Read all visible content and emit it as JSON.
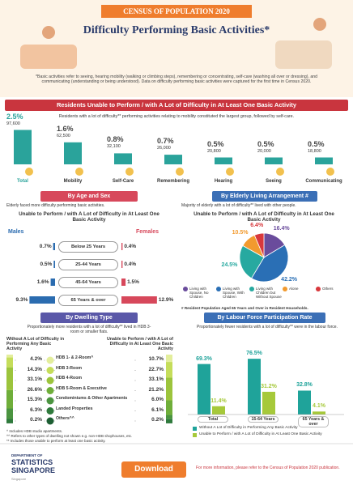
{
  "header": {
    "banner": "CENSUS OF POPULATION 2020",
    "title": "Difficulty Performing Basic Activities*",
    "note": "*Basic activities refer to seeing, hearing mobility (walking or climbing steps), remembering or concentrating, self-care (washing all over or dressing), and communicating (understanding or being understood). Data on difficulty performing basic activities were captured for the first time in Census 2020."
  },
  "activities": {
    "title": "Residents Unable to Perform / with A Lot of Difficulty in At Least One Basic Activity",
    "subtitle": "Residents with a lot of difficulty** performing activities relating to mobility constituted the largest group, followed by self-care.",
    "color": "#2aa39b",
    "items": [
      {
        "name": "Total",
        "value": 2.5,
        "label": "2.5%",
        "count": "97,600"
      },
      {
        "name": "Mobility",
        "value": 1.6,
        "label": "1.6%",
        "count": "62,500"
      },
      {
        "name": "Self-Care",
        "value": 0.8,
        "label": "0.8%",
        "count": "32,100"
      },
      {
        "name": "Remembering",
        "value": 0.7,
        "label": "0.7%",
        "count": "26,000"
      },
      {
        "name": "Hearing",
        "value": 0.5,
        "label": "0.5%",
        "count": "20,800"
      },
      {
        "name": "Seeing",
        "value": 0.5,
        "label": "0.5%",
        "count": "20,000"
      },
      {
        "name": "Communicating",
        "value": 0.5,
        "label": "0.5%",
        "count": "18,800"
      }
    ]
  },
  "age_sex": {
    "title": "By Age and Sex",
    "subtitle": "Elderly faced more difficulty performing basic activities.",
    "heading": "Unable to Perform / with A Lot of Difficulty in At Least One Basic Activity",
    "males": "Males",
    "females": "Females",
    "male_color": "#2b6cb0",
    "female_color": "#d7485b",
    "rows": [
      {
        "group": "Below 25 Years",
        "male": {
          "value": 0.7,
          "label": "0.7%"
        },
        "female": {
          "value": 0.4,
          "label": "0.4%"
        }
      },
      {
        "group": "25-44 Years",
        "male": {
          "value": 0.5,
          "label": "0.5%"
        },
        "female": {
          "value": 0.4,
          "label": "0.4%"
        }
      },
      {
        "group": "45-64 Years",
        "male": {
          "value": 1.6,
          "label": "1.6%"
        },
        "female": {
          "value": 1.5,
          "label": "1.5%"
        }
      },
      {
        "group": "65 Years & over",
        "male": {
          "value": 9.3,
          "label": "9.3%"
        },
        "female": {
          "value": 12.9,
          "label": "12.9%"
        }
      }
    ]
  },
  "living": {
    "title": "By Elderly Living Arrangement #",
    "subtitle": "Majority of elderly with a lot of difficulty** lived with other people.",
    "heading": "Unable to Perform / with A Lot of Difficulty in At Least One Basic Activity",
    "slices": [
      {
        "name": "Living with Spouse, No Children",
        "value": 16.4,
        "label": "16.4%",
        "color": "#6a4c9c"
      },
      {
        "name": "Living with Spouse, With Children",
        "value": 42.2,
        "label": "42.2%",
        "color": "#2a6fb5"
      },
      {
        "name": "Living with Children but Without Spouse",
        "value": 24.5,
        "label": "24.5%",
        "color": "#27a9a0"
      },
      {
        "name": "Alone",
        "value": 10.5,
        "label": "10.5%",
        "color": "#f29a2e"
      },
      {
        "name": "Others",
        "value": 6.4,
        "label": "6.4%",
        "color": "#d8383c"
      }
    ],
    "note": "# Resident Population Aged 65 Years and Over in Resident Households."
  },
  "dwelling": {
    "title": "By Dwelling Type",
    "subtitle": "Proportionately more residents with a lot of difficulty** lived in HDB 3-room or smaller flats.",
    "left_heading": "Without A Lot of Difficulty in Performing Any Basic Activity",
    "right_heading": "Unable to Perform / with A Lot of Difficulty in At Least One Basic Activity",
    "rows": [
      {
        "type": "HDB 1- & 2-Room^",
        "without": {
          "value": 4.2,
          "label": "4.2%"
        },
        "unable": {
          "value": 10.7,
          "label": "10.7%"
        },
        "color": "#e3ee9c"
      },
      {
        "type": "HDB 3-Room",
        "without": {
          "value": 14.3,
          "label": "14.3%"
        },
        "unable": {
          "value": 22.7,
          "label": "22.7%"
        },
        "color": "#c5dd5a"
      },
      {
        "type": "HDB 4-Room",
        "without": {
          "value": 33.1,
          "label": "33.1%"
        },
        "unable": {
          "value": 33.1,
          "label": "33.1%"
        },
        "color": "#9cc43c"
      },
      {
        "type": "HDB 5-Room & Executive",
        "without": {
          "value": 26.6,
          "label": "26.6%"
        },
        "unable": {
          "value": 21.2,
          "label": "21.2%"
        },
        "color": "#6fae3a"
      },
      {
        "type": "Condominiums & Other Apartments",
        "without": {
          "value": 15.3,
          "label": "15.3%"
        },
        "unable": {
          "value": 6.0,
          "label": "6.0%"
        },
        "color": "#4b9440"
      },
      {
        "type": "Landed Properties",
        "without": {
          "value": 6.3,
          "label": "6.3%"
        },
        "unable": {
          "value": 6.1,
          "label": "6.1%"
        },
        "color": "#2f7a3c"
      },
      {
        "type": "Others^^",
        "without": {
          "value": 0.2,
          "label": "0.2%"
        },
        "unable": {
          "value": 0.2,
          "label": "0.2%"
        },
        "color": "#1d5e33"
      }
    ],
    "notes": [
      "^ Includes HDB studio apartments.",
      "^^ Refers to other types of dwelling not shown e.g. non-HDB shophouses, etc.",
      "** Includes those unable to perform at least one basic activity."
    ]
  },
  "labour": {
    "title": "By Labour Force Participation Rate",
    "subtitle": "Proportionately fewer residents with a lot of difficulty** were in the labour force.",
    "categories": [
      "Total",
      "15-64 Years",
      "65 Years & over"
    ],
    "series": [
      {
        "name": "Without A Lot of Difficulty in Performing Any Basic Activity",
        "color": "#1fa39a",
        "values": [
          69.3,
          76.5,
          32.8
        ],
        "value_labels": [
          "69.3%",
          "76.5%",
          "32.8%"
        ]
      },
      {
        "name": "Unable to Perform / with A Lot of Difficulty in At Least One Basic Activity",
        "color": "#a6c93a",
        "values": [
          11.4,
          31.2,
          4.1
        ],
        "value_labels": [
          "11.4%",
          "31.2%",
          "4.1%"
        ]
      }
    ]
  },
  "footer": {
    "logo_top": "DEPARTMENT OF",
    "logo_main": "STATISTICS SINGAPORE",
    "tagline": "Singapore",
    "button": "Download",
    "info": "For more information, please refer to the Census of Population 2020 publication."
  }
}
